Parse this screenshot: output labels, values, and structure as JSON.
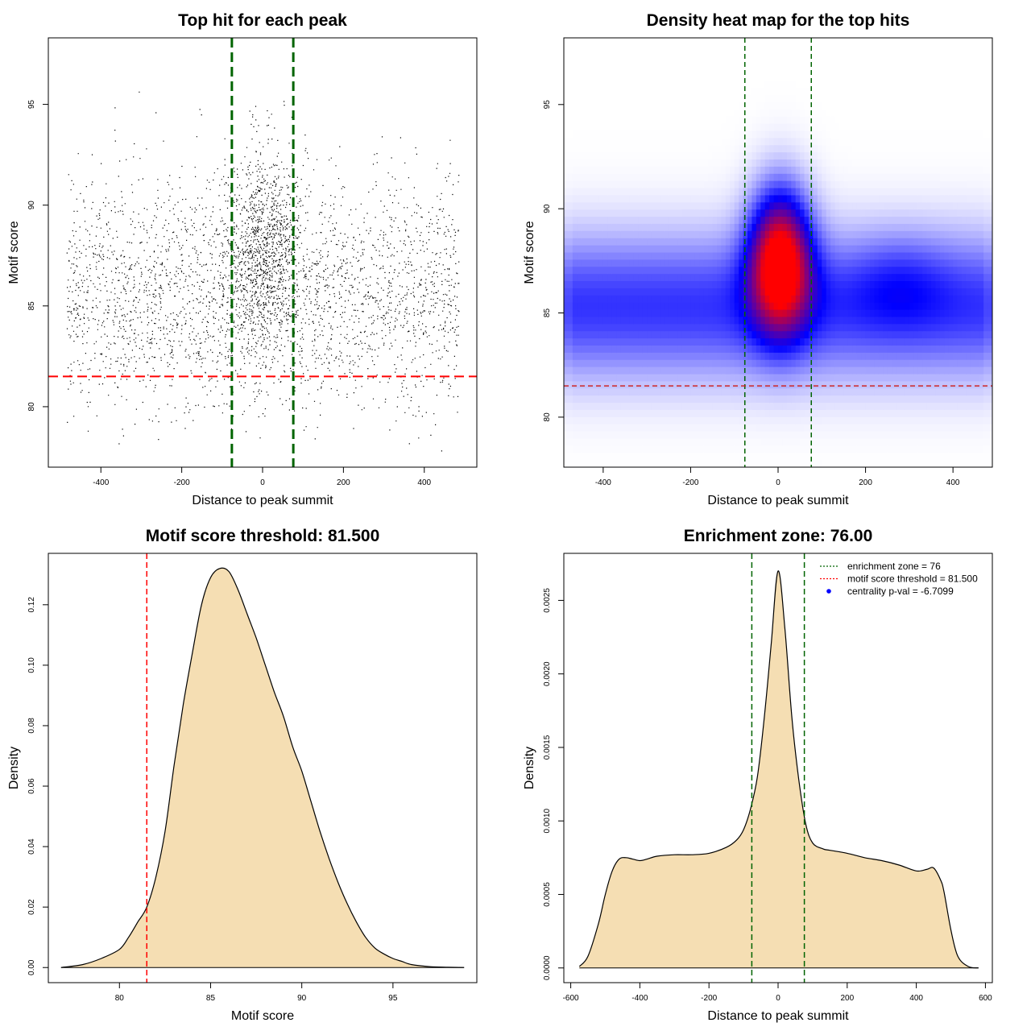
{
  "chart_data": [
    {
      "type": "scatter",
      "title": "Top hit for each peak",
      "xlabel": "Distance to peak summit",
      "ylabel": "Motif score",
      "xlim": [
        -530,
        530
      ],
      "ylim": [
        77,
        98.3
      ],
      "xticks": [
        -400,
        -200,
        0,
        200,
        400
      ],
      "yticks": [
        80,
        85,
        90,
        95
      ],
      "enrichment_zone": 76,
      "motif_score_threshold": 81.5,
      "point_color": "#000000",
      "vline_color": "#006400",
      "hline_color": "#ff0000"
    },
    {
      "type": "heatmap",
      "title": "Density heat map for the top hits",
      "xlabel": "Distance to peak summit",
      "ylabel": "Motif score",
      "xlim": [
        -490,
        490
      ],
      "ylim": [
        77.6,
        98.2
      ],
      "xticks": [
        -400,
        -200,
        0,
        200,
        400
      ],
      "yticks": [
        80,
        85,
        90,
        95
      ],
      "enrichment_zone": 76,
      "motif_score_threshold": 81.5,
      "colormap": [
        "#ffffff",
        "#0000ff",
        "#ff0000"
      ],
      "density_peak": {
        "x": 5,
        "y": 87.5
      },
      "vline_color": "#006400",
      "hline_color": "#cd2626"
    },
    {
      "type": "area",
      "title": "Motif score threshold: 81.500",
      "xlabel": "Motif score",
      "ylabel": "Density",
      "xlim": [
        76.1,
        99.6
      ],
      "ylim": [
        -0.005,
        0.137
      ],
      "xticks": [
        80,
        85,
        90,
        95
      ],
      "yticks": [
        0.0,
        0.02,
        0.04,
        0.06,
        0.08,
        0.1,
        0.12
      ],
      "ytick_labels": [
        "0.00",
        "0.02",
        "0.04",
        "0.06",
        "0.08",
        "0.10",
        "0.12"
      ],
      "x": [
        76.8,
        78,
        79,
        80,
        80.5,
        81,
        81.5,
        82,
        82.5,
        83,
        83.5,
        84,
        84.5,
        85,
        85.5,
        86,
        86.5,
        87,
        87.5,
        88,
        88.5,
        89,
        89.5,
        90,
        90.5,
        91,
        91.5,
        92,
        92.5,
        93,
        93.5,
        94,
        94.5,
        95,
        95.5,
        96,
        97,
        98,
        98.9
      ],
      "values": [
        0.0,
        0.001,
        0.003,
        0.006,
        0.01,
        0.015,
        0.02,
        0.03,
        0.045,
        0.067,
        0.087,
        0.104,
        0.12,
        0.129,
        0.132,
        0.131,
        0.125,
        0.117,
        0.109,
        0.1,
        0.091,
        0.083,
        0.073,
        0.065,
        0.055,
        0.045,
        0.036,
        0.028,
        0.021,
        0.015,
        0.01,
        0.0065,
        0.0045,
        0.003,
        0.002,
        0.001,
        0.0003,
        0.0001,
        0.0
      ],
      "threshold": 81.5,
      "fill_color": "#f5deb3",
      "line_color": "#000000",
      "threshold_color": "#ff0000"
    },
    {
      "type": "area",
      "title": "Enrichment zone: 76.00",
      "xlabel": "Distance to peak summit",
      "ylabel": "Density",
      "xlim": [
        -620,
        620
      ],
      "ylim": [
        -0.0001,
        0.00282
      ],
      "xticks": [
        -600,
        -400,
        -200,
        0,
        200,
        400,
        600
      ],
      "yticks": [
        0,
        0.0005,
        0.001,
        0.0015,
        0.002,
        0.0025
      ],
      "ytick_labels": [
        "0.0000",
        "0.0005",
        "0.0010",
        "0.0015",
        "0.0020",
        "0.0025"
      ],
      "x": [
        -575,
        -550,
        -520,
        -500,
        -480,
        -460,
        -440,
        -420,
        -400,
        -380,
        -350,
        -300,
        -250,
        -200,
        -150,
        -120,
        -100,
        -80,
        -60,
        -40,
        -20,
        0,
        20,
        40,
        60,
        80,
        100,
        130,
        150,
        200,
        250,
        300,
        350,
        400,
        430,
        450,
        470,
        480,
        500,
        520,
        550,
        580
      ],
      "values": [
        1e-05,
        8e-05,
        0.0003,
        0.0005,
        0.00066,
        0.00074,
        0.00075,
        0.00074,
        0.00073,
        0.00074,
        0.00076,
        0.00077,
        0.00077,
        0.00078,
        0.00082,
        0.00087,
        0.00094,
        0.00108,
        0.0013,
        0.0017,
        0.0022,
        0.0027,
        0.0023,
        0.0017,
        0.00128,
        0.00098,
        0.00085,
        0.00081,
        0.0008,
        0.00078,
        0.00075,
        0.00073,
        0.0007,
        0.00066,
        0.00067,
        0.00068,
        0.0006,
        0.00052,
        0.00026,
        8e-05,
        1e-05,
        0.0
      ],
      "enrichment_zone": 76,
      "fill_color": "#f5deb3",
      "line_color": "#000000",
      "zone_color": "#006400",
      "legend": {
        "position": "top-right",
        "items": [
          {
            "label": "enrichment zone = 76",
            "color": "#006400",
            "kind": "dotted-line"
          },
          {
            "label": "motif score threshold = 81.500",
            "color": "#ff0000",
            "kind": "dotted-line"
          },
          {
            "label": "centrality p-val = -6.7099",
            "color": "#0000ff",
            "kind": "point"
          }
        ]
      }
    }
  ]
}
